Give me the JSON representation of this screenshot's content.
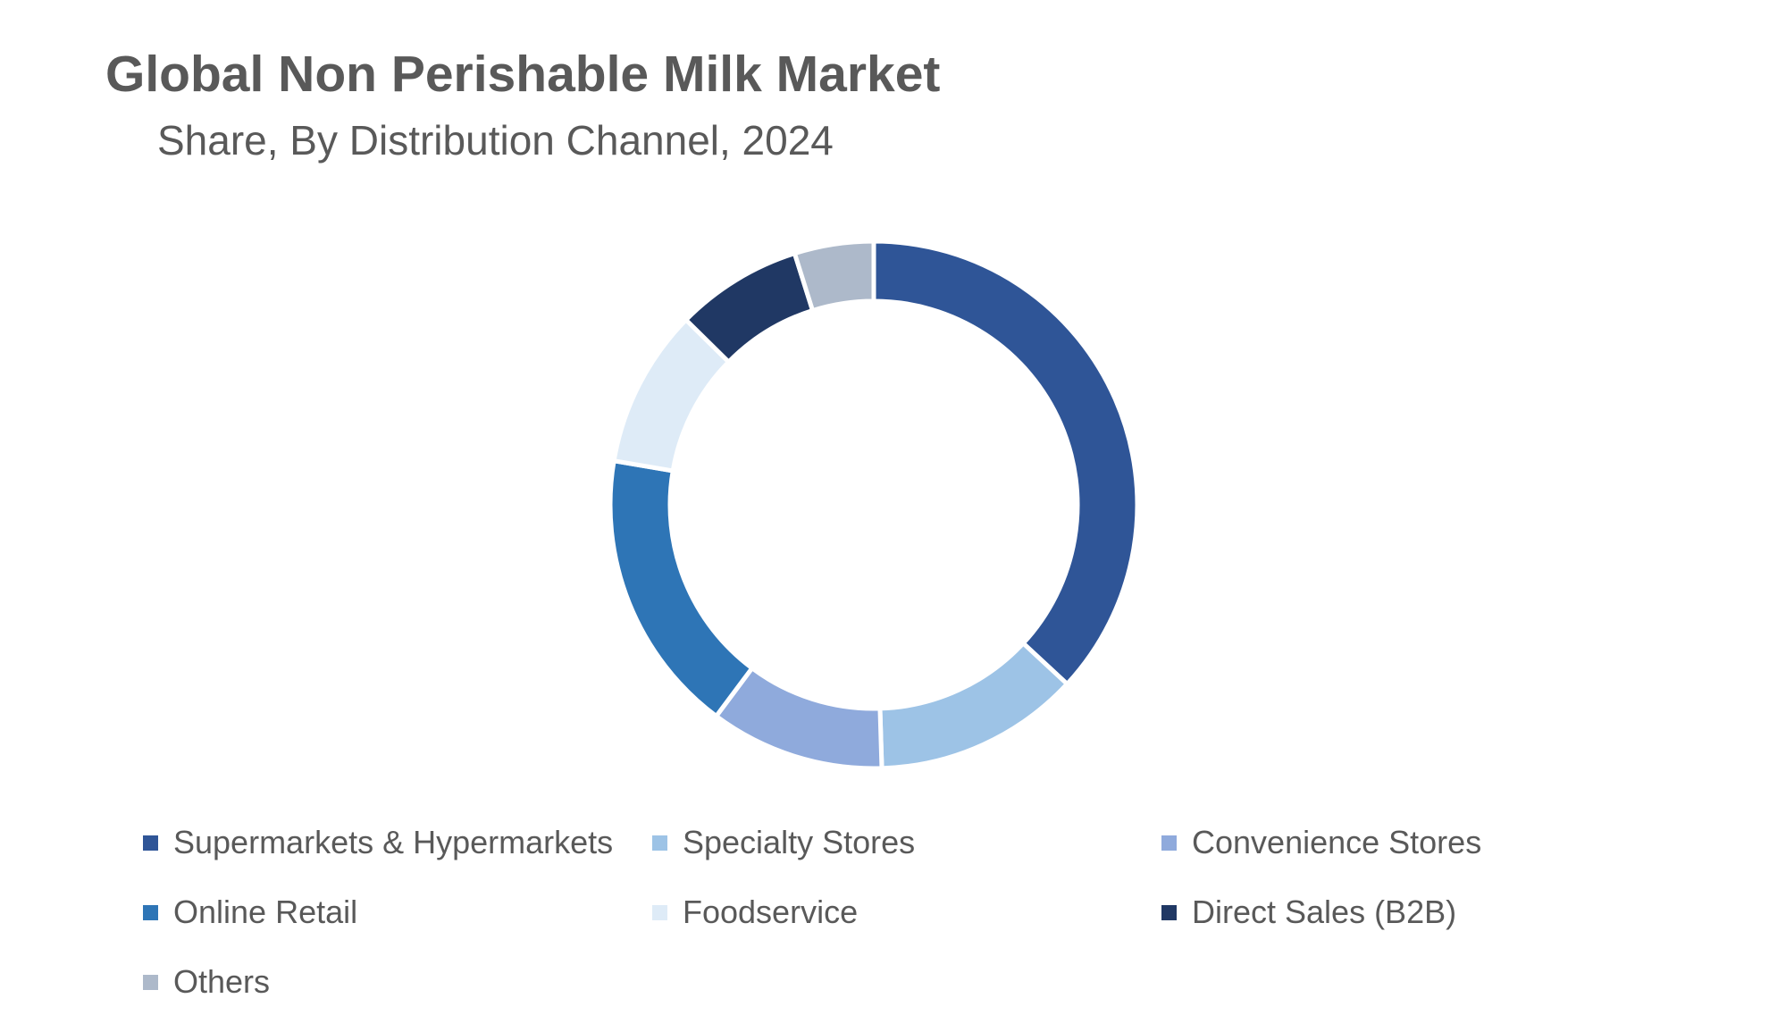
{
  "chart_data": {
    "type": "pie",
    "title": "Global Non Perishable Milk Market",
    "subtitle": "Share, By Distribution Channel, 2024",
    "donut": true,
    "legend_position": "bottom",
    "categories": [
      "Supermarkets & Hypermarkets",
      "Specialty Stores",
      "Convenience Stores",
      "Online Retail",
      "Foodservice",
      "Direct Sales (B2B)",
      "Others"
    ],
    "values": [
      38,
      13,
      11,
      18,
      10,
      8,
      5
    ],
    "colors": [
      "#2F5597",
      "#9DC3E6",
      "#8FAADC",
      "#2E75B6",
      "#DEEBF7",
      "#203864",
      "#ADB9CA"
    ]
  }
}
